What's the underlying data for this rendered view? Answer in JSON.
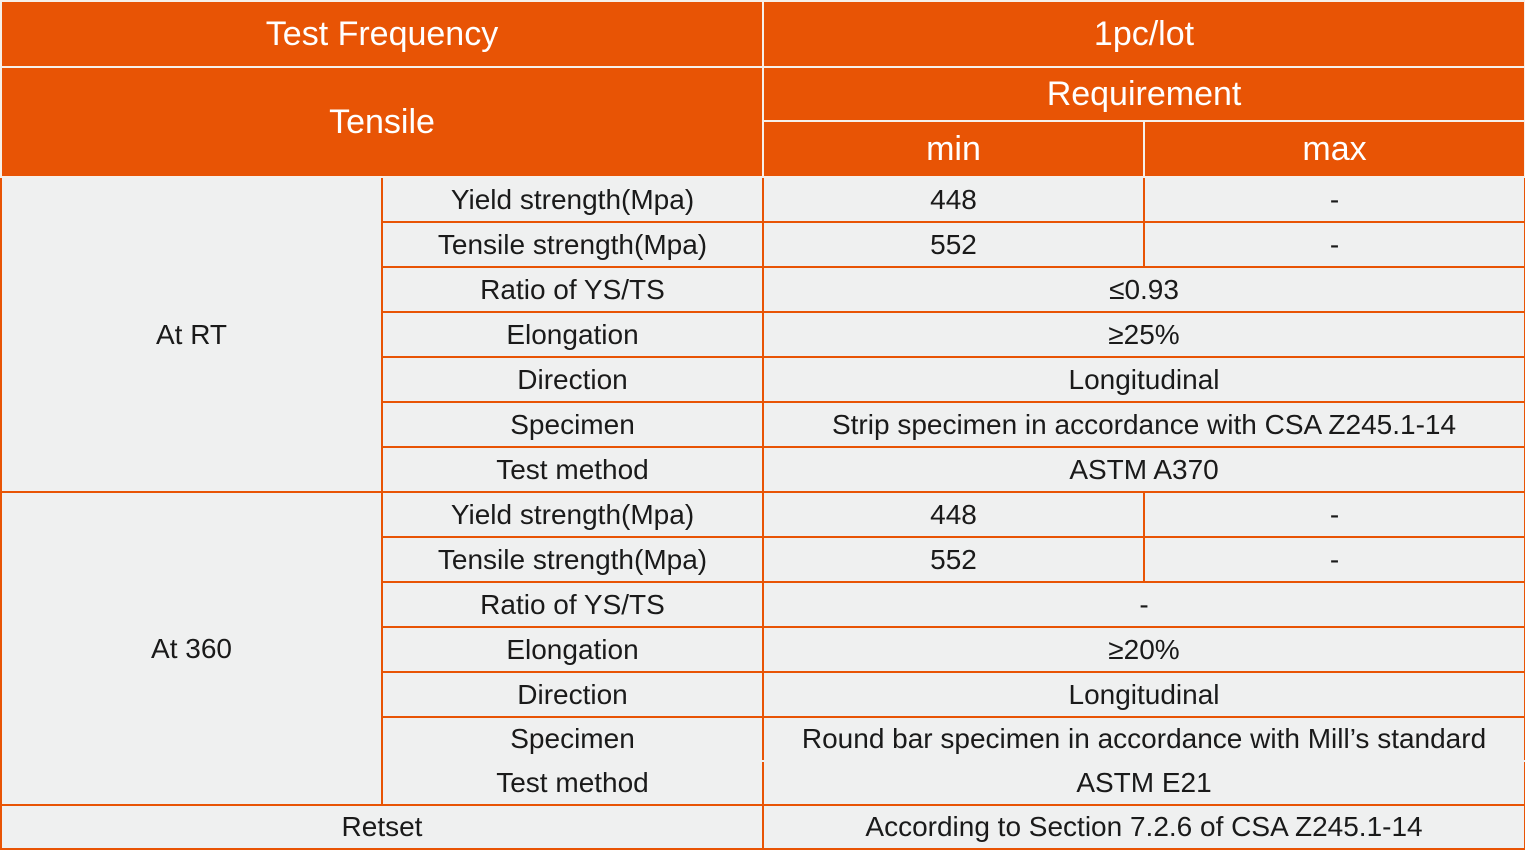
{
  "header": {
    "test_frequency_label": "Test Frequency",
    "test_frequency_value": "1pc/lot",
    "tensile_label": "Tensile",
    "requirement_label": "Requirement",
    "min_label": "min",
    "max_label": "max"
  },
  "groups": [
    {
      "condition": "At RT",
      "rows": [
        {
          "property": "Yield strength(Mpa)",
          "min": "448",
          "max": "-"
        },
        {
          "property": "Tensile strength(Mpa)",
          "min": "552",
          "max": "-"
        },
        {
          "property": "Ratio of YS/TS",
          "value": "≤0.93"
        },
        {
          "property": "Elongation",
          "value": "≥25%"
        },
        {
          "property": "Direction",
          "value": "Longitudinal"
        },
        {
          "property": "Specimen",
          "value": "Strip specimen in accordance with CSA Z245.1-14"
        },
        {
          "property": "Test method",
          "value": "ASTM A370"
        }
      ]
    },
    {
      "condition": "At 360",
      "rows": [
        {
          "property": "Yield strength(Mpa)",
          "min": "448",
          "max": "-"
        },
        {
          "property": "Tensile strength(Mpa)",
          "min": "552",
          "max": "-"
        },
        {
          "property": "Ratio of YS/TS",
          "value": "-"
        },
        {
          "property": "Elongation",
          "value": "≥20%"
        },
        {
          "property": "Direction",
          "value": "Longitudinal"
        },
        {
          "property": "Specimen",
          "value": "Round bar specimen in accordance with Mill’s standard"
        },
        {
          "property": "Test method",
          "value": "ASTM E21"
        }
      ]
    }
  ],
  "retset": {
    "label": "Retset",
    "value": "According to Section 7.2.6 of CSA Z245.1-14"
  },
  "colors": {
    "header_bg": "#e85405",
    "header_text": "#ffffff",
    "body_bg": "#eff0f0",
    "grid_line": "#e85405"
  }
}
